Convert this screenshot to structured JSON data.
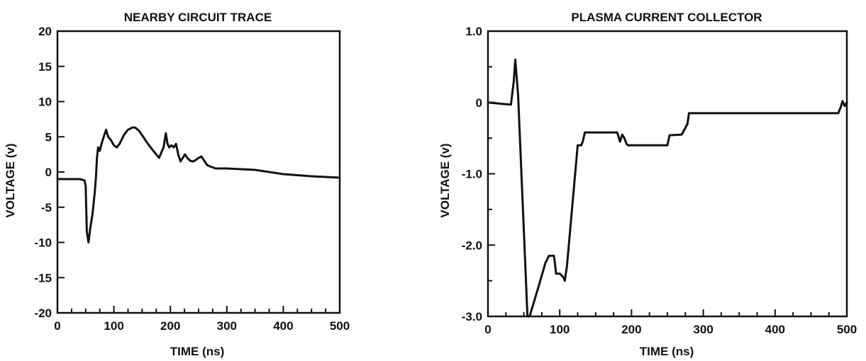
{
  "chart_data": [
    {
      "type": "line",
      "title": "NEARBY CIRCUIT TRACE",
      "xlabel": "TIME (ns)",
      "ylabel": "VOLTAGE (v)",
      "xlim": [
        0,
        500
      ],
      "ylim": [
        -20,
        20
      ],
      "xticks": [
        0,
        100,
        200,
        300,
        400,
        500
      ],
      "xtick_labels": [
        "0",
        "100",
        "200",
        "300",
        "400",
        "500"
      ],
      "xminor_step": 25,
      "yticks": [
        -20,
        -15,
        -10,
        -5,
        0,
        5,
        10,
        15,
        20
      ],
      "ytick_labels": [
        "-20",
        "-15",
        "-10",
        "-5",
        "0",
        "5",
        "10",
        "15",
        "20"
      ],
      "grid": false,
      "series": [
        {
          "x": [
            0,
            20,
            40,
            48,
            50,
            52,
            55,
            58,
            62,
            66,
            68,
            70,
            72,
            75,
            78,
            82,
            86,
            90,
            95,
            100,
            105,
            110,
            118,
            125,
            132,
            138,
            145,
            152,
            160,
            170,
            180,
            188,
            192,
            195,
            198,
            202,
            206,
            210,
            214,
            218,
            222,
            226,
            230,
            235,
            240,
            245,
            250,
            255,
            260,
            265,
            270,
            280,
            300,
            350,
            400,
            450,
            500
          ],
          "y": [
            -1,
            -1,
            -1,
            -1.2,
            -2,
            -8.5,
            -10,
            -8,
            -6,
            -3,
            -1,
            2,
            3.5,
            3,
            4,
            5,
            6,
            5,
            4.5,
            3.8,
            3.5,
            4,
            5.3,
            6,
            6.3,
            6.3,
            5.8,
            5,
            4,
            3,
            2,
            3.5,
            5.5,
            4,
            3.5,
            3.8,
            3.5,
            4,
            2.5,
            1.5,
            2,
            2.5,
            2,
            1.6,
            1.5,
            1.7,
            2,
            2.2,
            1.6,
            1,
            0.8,
            0.5,
            0.5,
            0.3,
            -0.3,
            -0.6,
            -0.8
          ]
        }
      ]
    },
    {
      "type": "line",
      "title": "PLASMA CURRENT COLLECTOR",
      "xlabel": "TIME (ns)",
      "ylabel": "VOLTAGE (v)",
      "xlim": [
        0,
        500
      ],
      "ylim": [
        -3.0,
        1.0
      ],
      "xticks": [
        0,
        100,
        200,
        300,
        400,
        500
      ],
      "xtick_labels": [
        "0",
        "100",
        "200",
        "300",
        "400",
        "500"
      ],
      "xminor_step": 25,
      "yticks": [
        -3.0,
        -2.0,
        -1.0,
        0,
        1.0
      ],
      "ytick_labels": [
        "-3.0",
        "-2.0",
        "-1.0",
        "0",
        "1.0"
      ],
      "yminor_step": 0.5,
      "grid": false,
      "series": [
        {
          "x": [
            0,
            20,
            32,
            36,
            38,
            42,
            55,
            58,
            70,
            80,
            85,
            92,
            95,
            100,
            105,
            107,
            110,
            125,
            130,
            132,
            135,
            140,
            180,
            184,
            187,
            190,
            193,
            195,
            250,
            253,
            270,
            278,
            280,
            285,
            300,
            350,
            400,
            450,
            488,
            492,
            494,
            497,
            500
          ],
          "y": [
            0,
            -0.02,
            -0.03,
            0.3,
            0.6,
            0.1,
            -3.0,
            -3.0,
            -2.6,
            -2.25,
            -2.15,
            -2.15,
            -2.4,
            -2.4,
            -2.45,
            -2.5,
            -2.3,
            -0.6,
            -0.6,
            -0.55,
            -0.42,
            -0.42,
            -0.42,
            -0.55,
            -0.45,
            -0.5,
            -0.58,
            -0.6,
            -0.6,
            -0.46,
            -0.45,
            -0.3,
            -0.15,
            -0.15,
            -0.15,
            -0.15,
            -0.15,
            -0.15,
            -0.15,
            -0.05,
            0.02,
            -0.05,
            0.0
          ]
        }
      ]
    }
  ]
}
